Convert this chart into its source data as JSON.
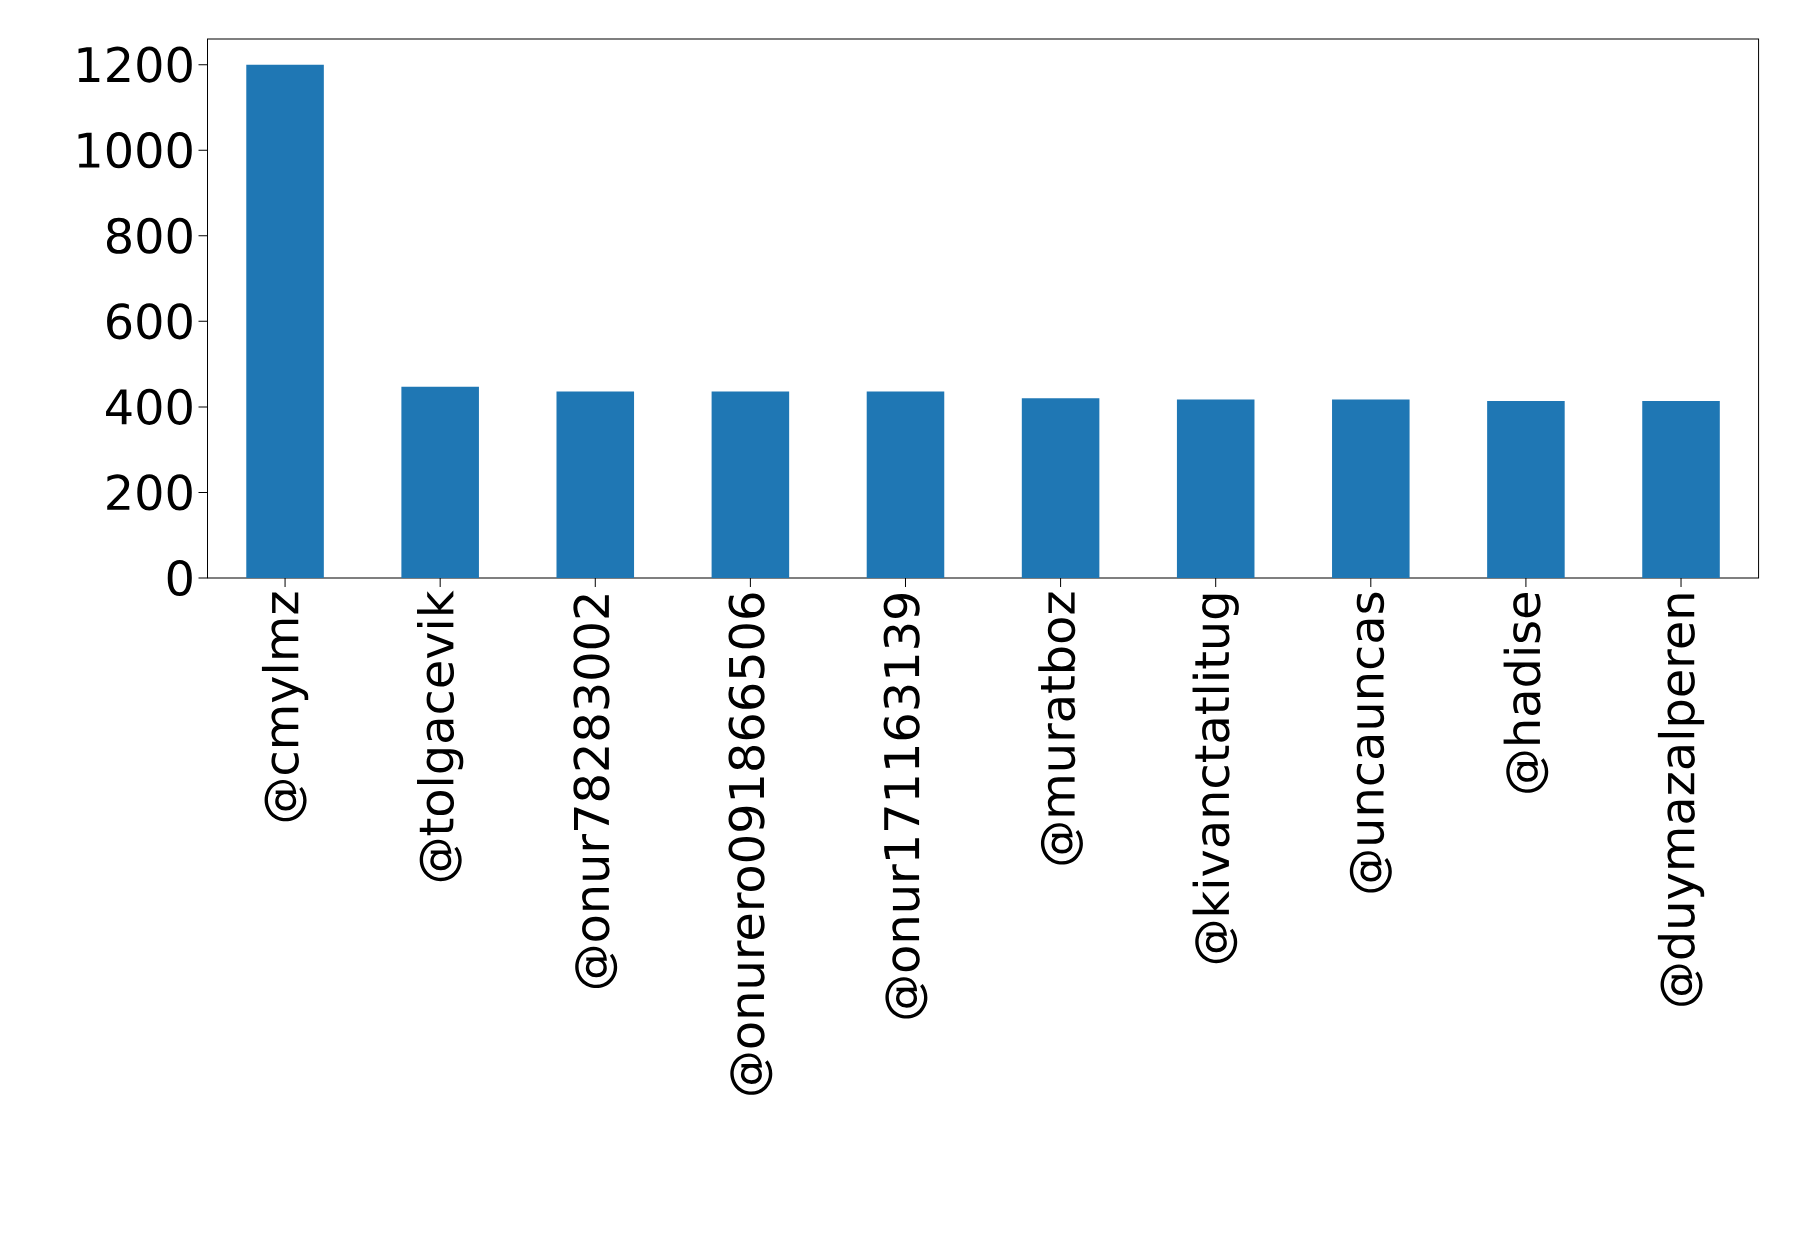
{
  "chart_data": {
    "type": "bar",
    "categories": [
      "@cmylmz",
      "@tolgacevik",
      "@onur78283002",
      "@onurero091866506",
      "@onur171163139",
      "@muratboz",
      "@kivanctatlitug",
      "@uncauncas",
      "@hadise",
      "@duymazalperen"
    ],
    "values": [
      1200,
      447,
      436,
      436,
      436,
      420,
      417,
      417,
      414,
      414
    ],
    "color": "#1f77b4",
    "ylim": [
      0,
      1260
    ],
    "yticks": [
      0,
      200,
      400,
      600,
      800,
      1000,
      1200
    ]
  }
}
